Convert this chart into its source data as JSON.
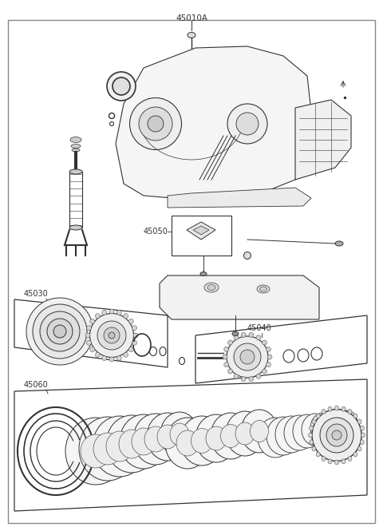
{
  "bg_color": "#ffffff",
  "border_color": "#aaaaaa",
  "line_color": "#333333",
  "label_color": "#333333",
  "figsize": [
    4.8,
    6.65
  ],
  "dpi": 100
}
